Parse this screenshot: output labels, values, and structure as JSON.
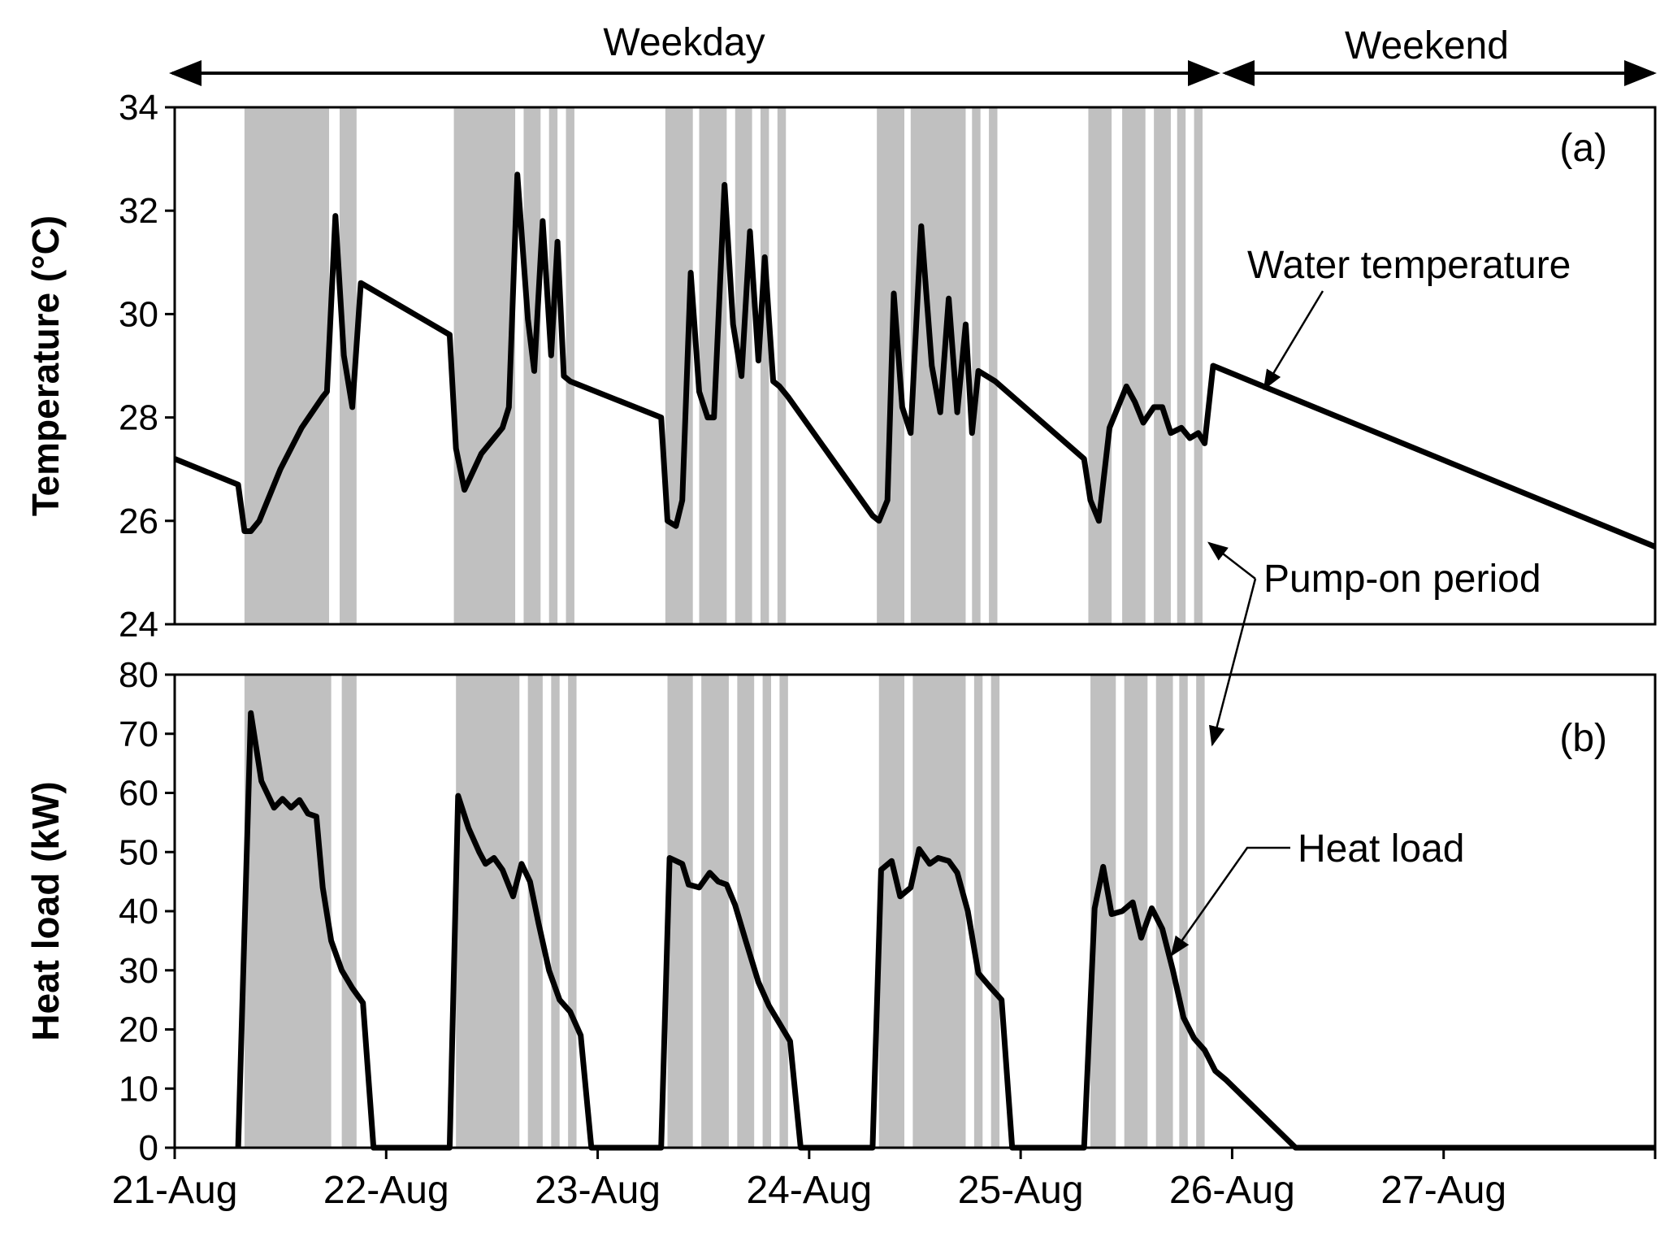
{
  "chart_data": [
    {
      "type": "line",
      "panel": "(a)",
      "ylabel": "Temperature (°C)",
      "ylim": [
        24,
        34
      ],
      "yticks": [
        24,
        26,
        28,
        30,
        32,
        34
      ],
      "x_unit": "day (0 = 21-Aug)",
      "xlim": [
        0,
        7
      ],
      "series": [
        {
          "name": "Water temperature",
          "x": [
            0,
            0.3,
            0.33,
            0.36,
            0.4,
            0.5,
            0.6,
            0.7,
            0.72,
            0.76,
            0.8,
            0.84,
            0.88,
            1.3,
            1.33,
            1.37,
            1.45,
            1.55,
            1.58,
            1.62,
            1.67,
            1.7,
            1.74,
            1.78,
            1.81,
            1.84,
            1.87,
            2.3,
            2.33,
            2.37,
            2.4,
            2.44,
            2.48,
            2.52,
            2.55,
            2.6,
            2.64,
            2.68,
            2.72,
            2.76,
            2.79,
            2.83,
            2.86,
            2.9,
            3.3,
            3.33,
            3.37,
            3.4,
            3.44,
            3.48,
            3.53,
            3.58,
            3.62,
            3.66,
            3.7,
            3.74,
            3.77,
            3.8,
            3.84,
            3.88,
            4.3,
            4.33,
            4.37,
            4.42,
            4.46,
            4.5,
            4.54,
            4.58,
            4.63,
            4.67,
            4.71,
            4.76,
            4.8,
            4.84,
            4.87,
            4.91,
            7
          ],
          "y": [
            27.2,
            26.7,
            25.8,
            25.8,
            26.0,
            27.0,
            27.8,
            28.4,
            28.5,
            31.9,
            29.2,
            28.2,
            30.6,
            29.6,
            27.4,
            26.6,
            27.3,
            27.8,
            28.2,
            32.7,
            29.9,
            28.9,
            31.8,
            29.2,
            31.4,
            28.8,
            28.7,
            28.0,
            26.0,
            25.9,
            26.4,
            30.8,
            28.5,
            28.0,
            28.0,
            32.5,
            29.8,
            28.8,
            31.6,
            29.1,
            31.1,
            28.7,
            28.6,
            28.4,
            26.1,
            26.0,
            26.4,
            30.4,
            28.2,
            27.7,
            31.7,
            29.0,
            28.1,
            30.3,
            28.1,
            29.8,
            27.7,
            28.9,
            28.8,
            28.7,
            27.2,
            26.4,
            26.0,
            27.8,
            28.2,
            28.6,
            28.3,
            27.9,
            28.2,
            28.2,
            27.7,
            27.8,
            27.6,
            27.7,
            27.5,
            29.0,
            25.5
          ]
        }
      ],
      "pump_on_periods": [
        [
          0.33,
          0.73
        ],
        [
          0.78,
          0.86
        ],
        [
          1.32,
          1.61
        ],
        [
          1.65,
          1.73
        ],
        [
          1.77,
          1.81
        ],
        [
          1.85,
          1.89
        ],
        [
          2.32,
          2.45
        ],
        [
          2.48,
          2.61
        ],
        [
          2.65,
          2.73
        ],
        [
          2.77,
          2.81
        ],
        [
          2.85,
          2.89
        ],
        [
          3.32,
          3.45
        ],
        [
          3.48,
          3.74
        ],
        [
          3.77,
          3.81
        ],
        [
          3.85,
          3.89
        ],
        [
          4.32,
          4.43
        ],
        [
          4.48,
          4.59
        ],
        [
          4.63,
          4.71
        ],
        [
          4.74,
          4.78
        ],
        [
          4.82,
          4.86
        ]
      ],
      "annotations": [
        "(a)",
        "Water temperature",
        "Pump-on period"
      ]
    },
    {
      "type": "line",
      "panel": "(b)",
      "ylabel": "Heat load (kW)",
      "ylim": [
        0,
        80
      ],
      "yticks": [
        0,
        10,
        20,
        30,
        40,
        50,
        60,
        70,
        80
      ],
      "x_unit": "day (0 = 21-Aug)",
      "xlim": [
        0,
        7
      ],
      "xtick_labels": [
        "21-Aug",
        "22-Aug",
        "23-Aug",
        "24-Aug",
        "25-Aug",
        "26-Aug",
        "27-Aug"
      ],
      "series": [
        {
          "name": "Heat load",
          "x": [
            0.3,
            0.36,
            0.41,
            0.47,
            0.51,
            0.55,
            0.59,
            0.63,
            0.67,
            0.7,
            0.74,
            0.79,
            0.84,
            0.89,
            0.94,
            1.3,
            1.34,
            1.39,
            1.44,
            1.47,
            1.51,
            1.55,
            1.6,
            1.64,
            1.68,
            1.72,
            1.77,
            1.82,
            1.87,
            1.92,
            1.97,
            2.3,
            2.34,
            2.4,
            2.43,
            2.48,
            2.53,
            2.57,
            2.61,
            2.65,
            2.7,
            2.76,
            2.81,
            2.86,
            2.91,
            2.96,
            3.3,
            3.34,
            3.39,
            3.43,
            3.48,
            3.52,
            3.57,
            3.61,
            3.66,
            3.7,
            3.75,
            3.8,
            3.86,
            3.91,
            3.96,
            4.3,
            4.35,
            4.39,
            4.43,
            4.48,
            4.53,
            4.57,
            4.62,
            4.67,
            4.72,
            4.77,
            4.82,
            4.87,
            4.92,
            4.97,
            5.3,
            5.34,
            5.38,
            5.43,
            5.47,
            5.51,
            5.56,
            5.6,
            5.65,
            5.7,
            5.74,
            5.79,
            5.84,
            5.88,
            5.93,
            5.97,
            7
          ],
          "y": [
            0,
            73.5,
            62.0,
            57.5,
            59.0,
            57.5,
            58.8,
            56.5,
            56.0,
            44.0,
            35.0,
            30.0,
            27.0,
            24.5,
            0,
            0,
            59.5,
            54.0,
            50.0,
            48.0,
            49.0,
            47.0,
            42.5,
            48.0,
            45.0,
            38.0,
            30.0,
            25.0,
            23.0,
            19.0,
            0,
            0,
            49.0,
            48.0,
            44.5,
            44.0,
            46.5,
            45.0,
            44.5,
            41.0,
            35.0,
            28.0,
            24.0,
            21.0,
            18.0,
            0,
            0,
            47.0,
            48.5,
            42.5,
            44.0,
            50.5,
            48.0,
            49.0,
            48.5,
            46.5,
            40.0,
            29.5,
            27.0,
            25.0,
            0,
            0,
            40.5,
            47.5,
            39.5,
            40.0,
            41.5,
            35.5,
            40.5,
            37.0,
            30.0,
            22.0,
            18.5,
            16.5,
            13.0,
            11.5,
            0,
            0,
            0,
            0,
            0,
            0,
            0,
            0,
            0,
            0,
            0,
            0,
            0,
            0,
            0,
            0,
            0
          ]
        }
      ],
      "pump_on_periods": [
        [
          0.33,
          0.74
        ],
        [
          0.79,
          0.86
        ],
        [
          1.33,
          1.63
        ],
        [
          1.67,
          1.74
        ],
        [
          1.78,
          1.82
        ],
        [
          1.86,
          1.9
        ],
        [
          2.33,
          2.45
        ],
        [
          2.49,
          2.62
        ],
        [
          2.66,
          2.74
        ],
        [
          2.78,
          2.82
        ],
        [
          2.86,
          2.9
        ],
        [
          3.33,
          3.45
        ],
        [
          3.49,
          3.74
        ],
        [
          3.78,
          3.82
        ],
        [
          3.86,
          3.9
        ],
        [
          4.33,
          4.45
        ],
        [
          4.49,
          4.6
        ],
        [
          4.64,
          4.72
        ],
        [
          4.75,
          4.79
        ],
        [
          4.83,
          4.87
        ]
      ],
      "annotations": [
        "(b)",
        "Heat load"
      ]
    }
  ],
  "period_labels": {
    "weekday": "Weekday",
    "weekend": "Weekend"
  }
}
